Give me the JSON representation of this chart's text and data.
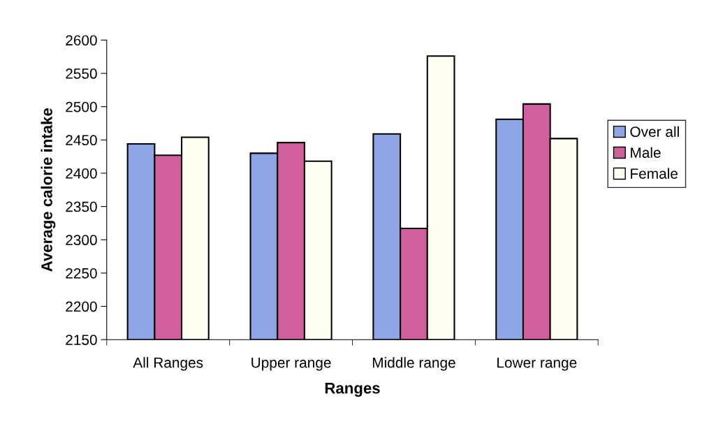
{
  "chart_data": {
    "type": "bar",
    "xlabel": "Ranges",
    "ylabel": "Average calorie intake",
    "categories": [
      "All Ranges",
      "Upper range",
      "Middle range",
      "Lower range"
    ],
    "series": [
      {
        "name": "Over all",
        "color": "#8fa6e6",
        "values": [
          2444,
          2430,
          2459,
          2481
        ]
      },
      {
        "name": "Male",
        "color": "#d0609c",
        "values": [
          2427,
          2446,
          2317,
          2504
        ]
      },
      {
        "name": "Female",
        "color": "#fffff2",
        "values": [
          2454,
          2418,
          2576,
          2452
        ]
      }
    ],
    "ylim": [
      2150,
      2600
    ],
    "yticks": [
      2150,
      2200,
      2250,
      2300,
      2350,
      2400,
      2450,
      2500,
      2550,
      2600
    ],
    "grid": false,
    "legend": "right"
  }
}
